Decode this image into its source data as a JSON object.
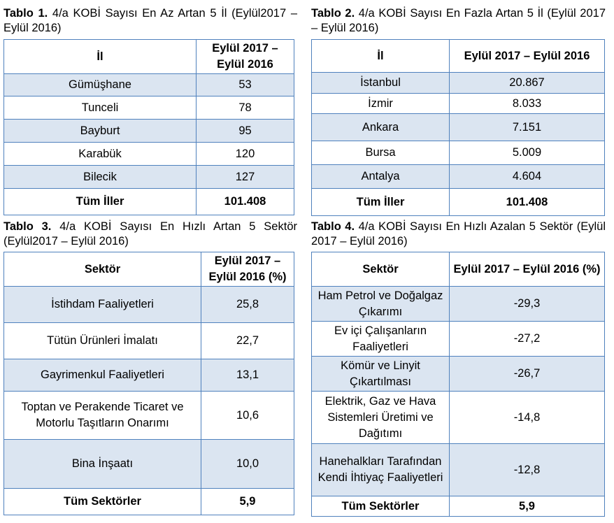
{
  "table1": {
    "caption_label": "Tablo 1.",
    "caption_text": " 4/a KOBİ Sayısı En Az Artan 5 İl (Eylül2017 – Eylül 2016)",
    "headers": [
      "İl",
      "Eylül 2017 – Eylül 2016"
    ],
    "rows": [
      {
        "name": "Gümüşhane",
        "value": "53"
      },
      {
        "name": "Tunceli",
        "value": "78"
      },
      {
        "name": "Bayburt",
        "value": "95"
      },
      {
        "name": "Karabük",
        "value": "120"
      },
      {
        "name": "Bilecik",
        "value": "127"
      }
    ],
    "total": {
      "name": "Tüm İller",
      "value": "101.408"
    }
  },
  "table2": {
    "caption_label": "Tablo 2.",
    "caption_text": " 4/a KOBİ Sayısı En Fazla Artan 5 İl  (Eylül 2017 – Eylül 2016)",
    "headers": [
      "İl",
      "Eylül 2017 – Eylül 2016"
    ],
    "rows": [
      {
        "name": "İstanbul",
        "value": "20.867"
      },
      {
        "name": "İzmir",
        "value": "8.033"
      },
      {
        "name": "Ankara",
        "value": "7.151"
      },
      {
        "name": "Bursa",
        "value": "5.009"
      },
      {
        "name": "Antalya",
        "value": "4.604"
      }
    ],
    "total": {
      "name": "Tüm İller",
      "value": "101.408"
    }
  },
  "table3": {
    "caption_label": "Tablo 3.",
    "caption_text": " 4/a KOBİ Sayısı En Hızlı Artan 5 Sektör (Eylül2017 – Eylül 2016)",
    "headers": [
      "Sektör",
      "Eylül 2017 – Eylül 2016 (%)"
    ],
    "rows": [
      {
        "name": "İstihdam Faaliyetleri",
        "value": "25,8"
      },
      {
        "name": "Tütün Ürünleri İmalatı",
        "value": "22,7"
      },
      {
        "name": "Gayrimenkul Faaliyetleri",
        "value": "13,1"
      },
      {
        "name": "Toptan ve Perakende Ticaret ve Motorlu Taşıtların Onarımı",
        "value": "10,6"
      },
      {
        "name": "Bina İnşaatı",
        "value": "10,0"
      }
    ],
    "total": {
      "name": "Tüm Sektörler",
      "value": "5,9"
    }
  },
  "table4": {
    "caption_label": "Tablo 4.",
    "caption_text": " 4/a KOBİ Sayısı En Hızlı Azalan 5 Sektör (Eylül 2017 – Eylül 2016)",
    "headers": [
      "Sektör",
      "Eylül 2017 – Eylül 2016 (%)"
    ],
    "rows": [
      {
        "name": "Ham Petrol ve Doğalgaz Çıkarımı",
        "value": "-29,3"
      },
      {
        "name": "Ev içi Çalışanların Faaliyetleri",
        "value": "-27,2"
      },
      {
        "name": "Kömür ve Linyit Çıkartılması",
        "value": "-26,7"
      },
      {
        "name": "Elektrik, Gaz ve Hava Sistemleri Üretimi ve Dağıtımı",
        "value": "-14,8"
      },
      {
        "name": "Hanehalkları Tarafından Kendi İhtiyaç Faaliyetleri",
        "value": "-12,8"
      }
    ],
    "total": {
      "name": "Tüm Sektörler",
      "value": "5,9"
    }
  },
  "colors": {
    "border": "#4f81bd",
    "band": "#dbe5f1"
  }
}
